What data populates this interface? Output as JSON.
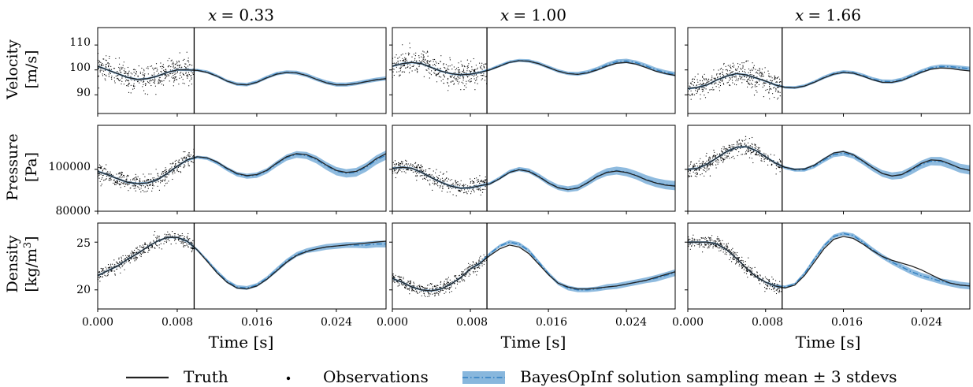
{
  "figure": {
    "columns": [
      {
        "title": "x = 0.33",
        "title_var": "x",
        "title_val": "= 0.33"
      },
      {
        "title": "x = 1.00",
        "title_var": "x",
        "title_val": "= 1.00"
      },
      {
        "title": "x = 1.66",
        "title_var": "x",
        "title_val": "= 1.66"
      }
    ],
    "rows": [
      {
        "ylabel_line1": "Velocity",
        "ylabel_line2": "[m/s]"
      },
      {
        "ylabel_line1": "Pressure",
        "ylabel_line2": "[Pa]"
      },
      {
        "ylabel_line1": "Density",
        "ylabel_line2": "[kg/m3]"
      }
    ],
    "xlabel": "Time [s]",
    "xtick_labels": [
      "0.000",
      "0.008",
      "0.016",
      "0.024"
    ],
    "ytick_labels": [
      [
        "90",
        "100",
        "110"
      ],
      [
        "80000",
        "100000"
      ],
      [
        "20",
        "25"
      ]
    ],
    "legend": {
      "truth": "Truth",
      "observations": "Observations",
      "bayes": "BayesOpInf solution sampling mean ± 3 stdevs"
    },
    "colors": {
      "truth": "#222222",
      "observations": "#000000",
      "mean": "#2f7fc1",
      "band": "#7bafd9"
    }
  },
  "chart_data": {
    "type": "line",
    "grid": false,
    "x_range": [
      0.0,
      0.029
    ],
    "training_end": 0.0097,
    "xticks": [
      0.0,
      0.008,
      0.016,
      0.024
    ],
    "rows": [
      {
        "quantity": "Velocity",
        "unit": "m/s",
        "yrange": [
          82.5,
          117
        ],
        "yticks": [
          90,
          100,
          110
        ],
        "obs_noise": 4.5
      },
      {
        "quantity": "Pressure",
        "unit": "Pa",
        "yrange": [
          80000,
          121000
        ],
        "yticks": [
          80000,
          100000
        ],
        "obs_noise": 3500
      },
      {
        "quantity": "Density",
        "unit": "kg/m3",
        "yrange": [
          18,
          27
        ],
        "yticks": [
          20,
          25
        ],
        "obs_noise": 0.6
      }
    ],
    "x": [
      0.0,
      0.001,
      0.002,
      0.003,
      0.004,
      0.005,
      0.006,
      0.007,
      0.008,
      0.009,
      0.01,
      0.011,
      0.012,
      0.013,
      0.014,
      0.015,
      0.016,
      0.017,
      0.018,
      0.019,
      0.02,
      0.021,
      0.022,
      0.023,
      0.024,
      0.025,
      0.026,
      0.027,
      0.028,
      0.029
    ],
    "panels": [
      {
        "row": 0,
        "col": 0,
        "truth": [
          101.5,
          100,
          98.5,
          97,
          96.2,
          96.5,
          97.5,
          99,
          100,
          100,
          99.8,
          99,
          97.5,
          95.5,
          94.2,
          94,
          95,
          96.8,
          98.3,
          99,
          98.8,
          97.8,
          96.2,
          94.8,
          94,
          94,
          94.5,
          95.3,
          96,
          96.5
        ],
        "mean": [
          101.5,
          100,
          98.5,
          97,
          96.2,
          96.5,
          97.5,
          99,
          100,
          100,
          99.9,
          99.2,
          97.6,
          95.6,
          94.3,
          94.1,
          95.2,
          97,
          98.5,
          99.1,
          98.9,
          97.9,
          96.3,
          95,
          94.1,
          94.1,
          94.6,
          95.4,
          96.1,
          96.6
        ],
        "band": [
          0.4,
          0.4,
          0.4,
          0.4,
          0.4,
          0.4,
          0.4,
          0.4,
          0.4,
          0.5,
          0.5,
          0.6,
          0.6,
          0.6,
          0.7,
          0.7,
          0.7,
          0.7,
          0.7,
          0.7,
          0.8,
          0.8,
          0.8,
          0.8,
          0.8,
          0.8,
          0.8,
          0.8,
          0.8,
          0.8
        ]
      },
      {
        "row": 0,
        "col": 1,
        "truth": [
          101.5,
          102.5,
          103,
          102.5,
          101,
          99.5,
          98.5,
          98,
          98.3,
          99,
          100,
          101.5,
          103,
          103.7,
          103.5,
          102.5,
          101,
          99.5,
          98.5,
          98.2,
          98.8,
          100,
          101.5,
          102.7,
          103,
          102.3,
          101,
          99.5,
          98.5,
          97.8
        ],
        "mean": [
          101.5,
          102.5,
          103,
          102.5,
          101,
          99.5,
          98.5,
          98,
          98.3,
          99,
          100.2,
          101.7,
          103.2,
          103.8,
          103.6,
          102.6,
          101.1,
          99.6,
          98.6,
          98.4,
          99.1,
          100.4,
          102,
          103.3,
          103.6,
          102.9,
          101.6,
          100.1,
          99,
          98.3
        ],
        "band": [
          0.4,
          0.4,
          0.4,
          0.4,
          0.4,
          0.4,
          0.4,
          0.4,
          0.4,
          0.5,
          0.5,
          0.6,
          0.6,
          0.6,
          0.7,
          0.7,
          0.7,
          0.7,
          0.7,
          0.8,
          0.8,
          0.8,
          0.9,
          0.9,
          0.9,
          0.9,
          0.9,
          0.9,
          0.9,
          0.9
        ]
      },
      {
        "row": 0,
        "col": 2,
        "truth": [
          92.5,
          93,
          94,
          96,
          97.5,
          98.5,
          98,
          96.8,
          95.5,
          94,
          93,
          92.8,
          93.5,
          95,
          96.8,
          98.3,
          99,
          98.7,
          97.5,
          96,
          95,
          95,
          95.8,
          97.3,
          99,
          100.3,
          100.8,
          100.6,
          100,
          99.6
        ],
        "mean": [
          92.5,
          93,
          94,
          96,
          97.5,
          98.5,
          98,
          96.8,
          95.5,
          94,
          93,
          92.9,
          93.6,
          95.2,
          97,
          98.5,
          99.2,
          98.9,
          97.8,
          96.4,
          95.4,
          95.3,
          96.1,
          97.7,
          99.4,
          100.8,
          101.4,
          101.3,
          100.9,
          100.5
        ],
        "band": [
          0.4,
          0.4,
          0.4,
          0.4,
          0.4,
          0.4,
          0.4,
          0.4,
          0.4,
          0.5,
          0.5,
          0.6,
          0.6,
          0.6,
          0.7,
          0.7,
          0.7,
          0.7,
          0.7,
          0.7,
          0.8,
          0.8,
          0.8,
          0.8,
          0.8,
          0.8,
          0.8,
          0.8,
          0.8,
          0.8
        ]
      },
      {
        "row": 1,
        "col": 0,
        "truth": [
          99000,
          97500,
          95500,
          93800,
          93200,
          93500,
          95000,
          98000,
          101500,
          104500,
          106000,
          105500,
          103500,
          100500,
          98000,
          97000,
          97500,
          99500,
          103000,
          106000,
          107500,
          107000,
          105000,
          102000,
          99500,
          98500,
          99000,
          101500,
          105000,
          107500
        ],
        "mean": [
          99000,
          97500,
          95500,
          93800,
          93200,
          93500,
          95000,
          98000,
          101500,
          104500,
          105800,
          105300,
          103200,
          100200,
          97700,
          96700,
          97200,
          99200,
          102600,
          105600,
          107100,
          106600,
          104600,
          101600,
          99100,
          98100,
          98600,
          101000,
          104400,
          106800
        ],
        "band": [
          500,
          500,
          500,
          500,
          500,
          500,
          500,
          500,
          500,
          600,
          700,
          800,
          900,
          1000,
          1100,
          1200,
          1300,
          1300,
          1400,
          1500,
          1600,
          1700,
          1800,
          1900,
          2000,
          2000,
          2100,
          2100,
          2200,
          2200
        ]
      },
      {
        "row": 1,
        "col": 1,
        "truth": [
          100500,
          101000,
          100500,
          98500,
          96000,
          93800,
          92000,
          91000,
          91200,
          92200,
          93000,
          95500,
          98500,
          99800,
          99000,
          96500,
          93500,
          91200,
          90300,
          91000,
          93500,
          96500,
          98500,
          99200,
          98500,
          97000,
          95000,
          93500,
          92500,
          92000
        ],
        "mean": [
          100500,
          101000,
          100500,
          98500,
          96000,
          93800,
          92000,
          91000,
          91200,
          92200,
          93200,
          95800,
          98800,
          100100,
          99300,
          96800,
          93700,
          91400,
          90500,
          91200,
          93700,
          96700,
          98700,
          99400,
          98700,
          97200,
          95200,
          93700,
          92700,
          92200
        ],
        "band": [
          500,
          500,
          500,
          500,
          500,
          500,
          500,
          500,
          500,
          600,
          700,
          800,
          900,
          1000,
          1100,
          1200,
          1300,
          1300,
          1400,
          1500,
          1600,
          1700,
          1800,
          1900,
          2000,
          2000,
          2100,
          2100,
          2200,
          2200
        ]
      },
      {
        "row": 1,
        "col": 2,
        "truth": [
          100000,
          100500,
          102500,
          105500,
          108500,
          110500,
          110800,
          109000,
          106000,
          103000,
          101000,
          100000,
          100200,
          102000,
          105000,
          107800,
          108500,
          107000,
          104000,
          100800,
          98000,
          96800,
          97500,
          100000,
          102800,
          104500,
          104200,
          102500,
          100500,
          99500
        ],
        "mean": [
          100000,
          100500,
          102500,
          105500,
          108500,
          110500,
          110800,
          109000,
          106000,
          103000,
          100800,
          99700,
          99800,
          101500,
          104400,
          107000,
          107700,
          106400,
          103700,
          100600,
          98000,
          96800,
          97300,
          99500,
          102200,
          103900,
          103800,
          102300,
          100500,
          99700
        ],
        "band": [
          500,
          500,
          500,
          500,
          500,
          500,
          500,
          500,
          500,
          600,
          700,
          800,
          900,
          1000,
          1100,
          1200,
          1300,
          1300,
          1400,
          1500,
          1600,
          1700,
          1800,
          1900,
          2000,
          2000,
          2100,
          2100,
          2200,
          2200
        ]
      },
      {
        "row": 2,
        "col": 0,
        "truth": [
          21.5,
          22,
          22.5,
          23.2,
          23.8,
          24.5,
          25.1,
          25.5,
          25.5,
          25.1,
          24.2,
          23,
          21.8,
          20.8,
          20.2,
          20.1,
          20.4,
          21.1,
          22,
          22.9,
          23.6,
          24,
          24.3,
          24.5,
          24.6,
          24.7,
          24.8,
          24.9,
          25,
          25.1
        ],
        "mean": [
          21.5,
          22,
          22.5,
          23.2,
          23.8,
          24.5,
          25.1,
          25.5,
          25.5,
          25.1,
          24.2,
          23.1,
          21.9,
          20.9,
          20.3,
          20.2,
          20.5,
          21.2,
          22.1,
          23,
          23.7,
          24.1,
          24.3,
          24.5,
          24.6,
          24.7,
          24.7,
          24.7,
          24.8,
          24.8
        ],
        "band": [
          0.1,
          0.1,
          0.1,
          0.1,
          0.1,
          0.1,
          0.1,
          0.1,
          0.1,
          0.15,
          0.15,
          0.15,
          0.2,
          0.2,
          0.2,
          0.2,
          0.2,
          0.2,
          0.25,
          0.25,
          0.25,
          0.25,
          0.3,
          0.3,
          0.3,
          0.3,
          0.3,
          0.35,
          0.35,
          0.35
        ]
      },
      {
        "row": 2,
        "col": 1,
        "truth": [
          21.2,
          20.8,
          20.3,
          20,
          19.9,
          20.1,
          20.6,
          21.3,
          22.2,
          22.8,
          23.6,
          24.3,
          24.7,
          24.5,
          23.8,
          22.7,
          21.6,
          20.7,
          20.3,
          20.1,
          20.1,
          20.2,
          20.3,
          20.4,
          20.6,
          20.8,
          21,
          21.3,
          21.6,
          21.9
        ],
        "mean": [
          21.2,
          20.8,
          20.3,
          20,
          19.9,
          20.1,
          20.6,
          21.3,
          22.2,
          22.8,
          23.8,
          24.6,
          25,
          24.8,
          24.1,
          22.9,
          21.7,
          20.7,
          20.2,
          20,
          20,
          20.1,
          20.3,
          20.4,
          20.6,
          20.8,
          21,
          21.2,
          21.5,
          21.8
        ],
        "band": [
          0.1,
          0.1,
          0.1,
          0.1,
          0.1,
          0.1,
          0.1,
          0.1,
          0.1,
          0.15,
          0.15,
          0.15,
          0.2,
          0.2,
          0.2,
          0.2,
          0.2,
          0.2,
          0.25,
          0.25,
          0.25,
          0.25,
          0.3,
          0.3,
          0.3,
          0.3,
          0.3,
          0.35,
          0.35,
          0.35
        ]
      },
      {
        "row": 2,
        "col": 2,
        "truth": [
          25,
          25,
          25,
          24.8,
          24.2,
          23.3,
          22.3,
          21.4,
          20.8,
          20.4,
          20.2,
          20.5,
          21.5,
          22.9,
          24.3,
          25.3,
          25.6,
          25.4,
          24.8,
          24.1,
          23.5,
          23.1,
          22.8,
          22.5,
          22.1,
          21.6,
          21.1,
          20.7,
          20.5,
          20.4
        ],
        "mean": [
          25,
          25,
          25,
          24.8,
          24.2,
          23.3,
          22.3,
          21.4,
          20.8,
          20.4,
          20.3,
          20.6,
          21.7,
          23.2,
          24.6,
          25.6,
          25.9,
          25.7,
          25,
          24.2,
          23.5,
          22.9,
          22.4,
          21.9,
          21.5,
          21.2,
          20.9,
          20.7,
          20.5,
          20.4
        ],
        "band": [
          0.1,
          0.1,
          0.1,
          0.1,
          0.1,
          0.1,
          0.1,
          0.1,
          0.1,
          0.15,
          0.15,
          0.15,
          0.2,
          0.2,
          0.2,
          0.2,
          0.2,
          0.2,
          0.25,
          0.25,
          0.25,
          0.25,
          0.3,
          0.3,
          0.3,
          0.3,
          0.3,
          0.35,
          0.35,
          0.35
        ]
      }
    ]
  }
}
